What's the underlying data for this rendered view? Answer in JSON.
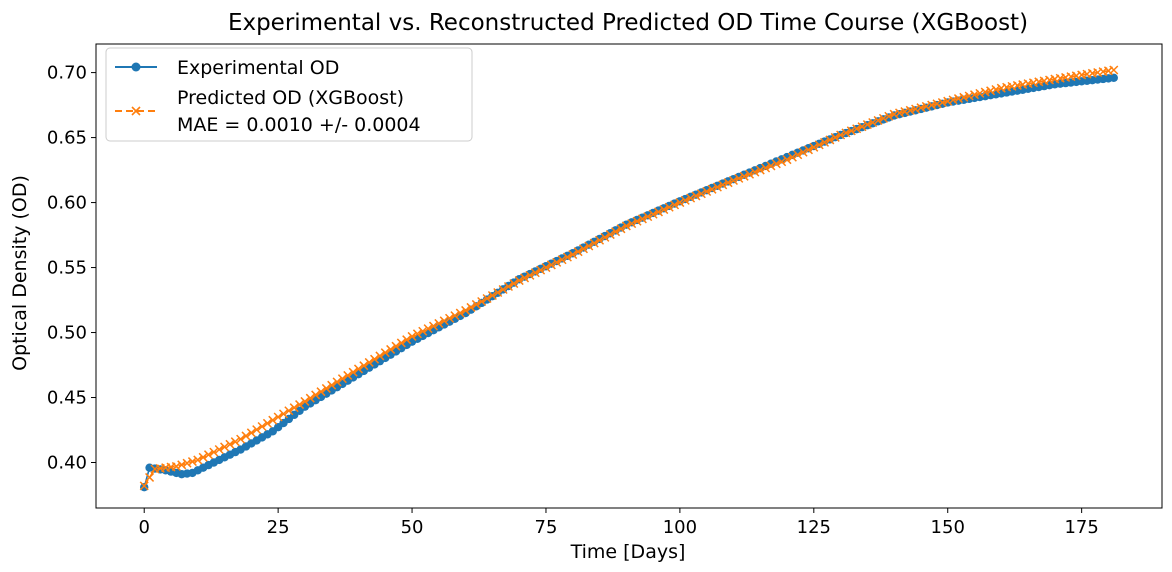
{
  "chart_data": {
    "type": "line",
    "title": "Experimental vs. Reconstructed Predicted OD Time Course (XGBoost)",
    "xlabel": "Time [Days]",
    "ylabel": "Optical Density (OD)",
    "xlim": [
      -9,
      190
    ],
    "ylim": [
      0.365,
      0.722
    ],
    "xticks": [
      0,
      25,
      50,
      75,
      100,
      125,
      150,
      175
    ],
    "yticks": [
      0.4,
      0.45,
      0.5,
      0.55,
      0.6,
      0.65,
      0.7
    ],
    "ytick_labels": [
      "0.40",
      "0.45",
      "0.50",
      "0.55",
      "0.60",
      "0.65",
      "0.70"
    ],
    "grid": false,
    "legend_position": "top-left",
    "x_domain": [
      0,
      181
    ],
    "series": [
      {
        "name": "Experimental OD",
        "color": "#1f77b4",
        "marker": "circle",
        "linestyle": "solid",
        "anchors": [
          [
            0,
            0.381
          ],
          [
            1,
            0.396
          ],
          [
            4,
            0.394
          ],
          [
            7,
            0.391
          ],
          [
            9,
            0.392
          ],
          [
            12,
            0.398
          ],
          [
            18,
            0.41
          ],
          [
            24,
            0.424
          ],
          [
            30,
            0.443
          ],
          [
            40,
            0.468
          ],
          [
            50,
            0.493
          ],
          [
            60,
            0.515
          ],
          [
            70,
            0.541
          ],
          [
            80,
            0.561
          ],
          [
            90,
            0.583
          ],
          [
            100,
            0.601
          ],
          [
            110,
            0.618
          ],
          [
            120,
            0.635
          ],
          [
            130,
            0.652
          ],
          [
            140,
            0.667
          ],
          [
            150,
            0.677
          ],
          [
            160,
            0.684
          ],
          [
            170,
            0.691
          ],
          [
            181,
            0.696
          ]
        ]
      },
      {
        "name": "Predicted OD (XGBoost)",
        "color": "#ff7f0e",
        "marker": "x",
        "linestyle": "dashed",
        "anchors": [
          [
            0,
            0.382
          ],
          [
            2,
            0.395
          ],
          [
            6,
            0.397
          ],
          [
            10,
            0.402
          ],
          [
            18,
            0.418
          ],
          [
            25,
            0.435
          ],
          [
            30,
            0.447
          ],
          [
            40,
            0.472
          ],
          [
            50,
            0.497
          ],
          [
            60,
            0.517
          ],
          [
            70,
            0.54
          ],
          [
            80,
            0.56
          ],
          [
            90,
            0.582
          ],
          [
            100,
            0.6
          ],
          [
            110,
            0.617
          ],
          [
            120,
            0.633
          ],
          [
            130,
            0.652
          ],
          [
            140,
            0.668
          ],
          [
            150,
            0.678
          ],
          [
            160,
            0.688
          ],
          [
            170,
            0.695
          ],
          [
            181,
            0.702
          ]
        ]
      }
    ]
  },
  "legend": {
    "items": [
      {
        "label": "Experimental OD"
      },
      {
        "label": "Predicted OD (XGBoost)",
        "sublabel": "MAE = 0.0010 +/- 0.0004"
      }
    ]
  }
}
